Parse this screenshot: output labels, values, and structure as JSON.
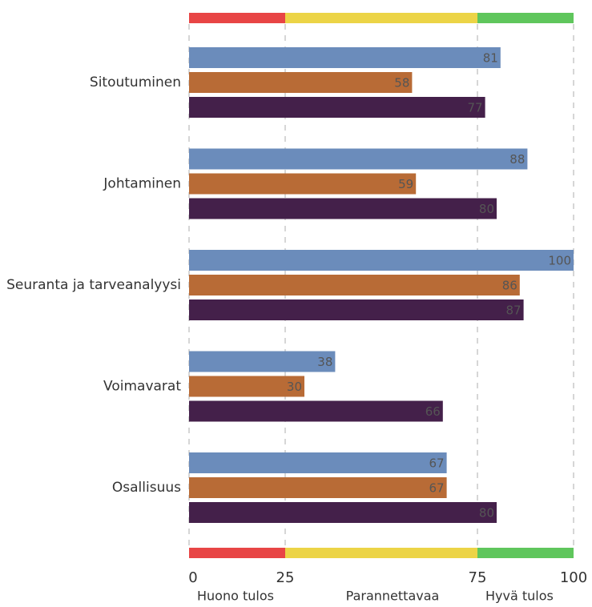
{
  "chart_data": {
    "type": "bar",
    "orientation": "horizontal",
    "categories": [
      "Sitoutuminen",
      "Johtaminen",
      "Seuranta ja tarveanalyysi",
      "Voimavarat",
      "Osallisuus"
    ],
    "series": [
      {
        "color": "#6b8cbb",
        "values": [
          81,
          88,
          100,
          38,
          67
        ]
      },
      {
        "color": "#b86b36",
        "values": [
          58,
          59,
          86,
          30,
          67
        ]
      },
      {
        "color": "#44204a",
        "values": [
          77,
          80,
          87,
          66,
          80
        ]
      }
    ],
    "xlim": [
      0,
      100
    ],
    "xticks": [
      0,
      25,
      75,
      100
    ],
    "grid": true,
    "zones": [
      {
        "from": 0,
        "to": 25,
        "color": "#e84545",
        "label": "Huono tulos"
      },
      {
        "from": 25,
        "to": 75,
        "color": "#ecd446",
        "label": "Parannettavaa"
      },
      {
        "from": 75,
        "to": 100,
        "color": "#5fc65c",
        "label": "Hyvä tulos"
      }
    ]
  }
}
